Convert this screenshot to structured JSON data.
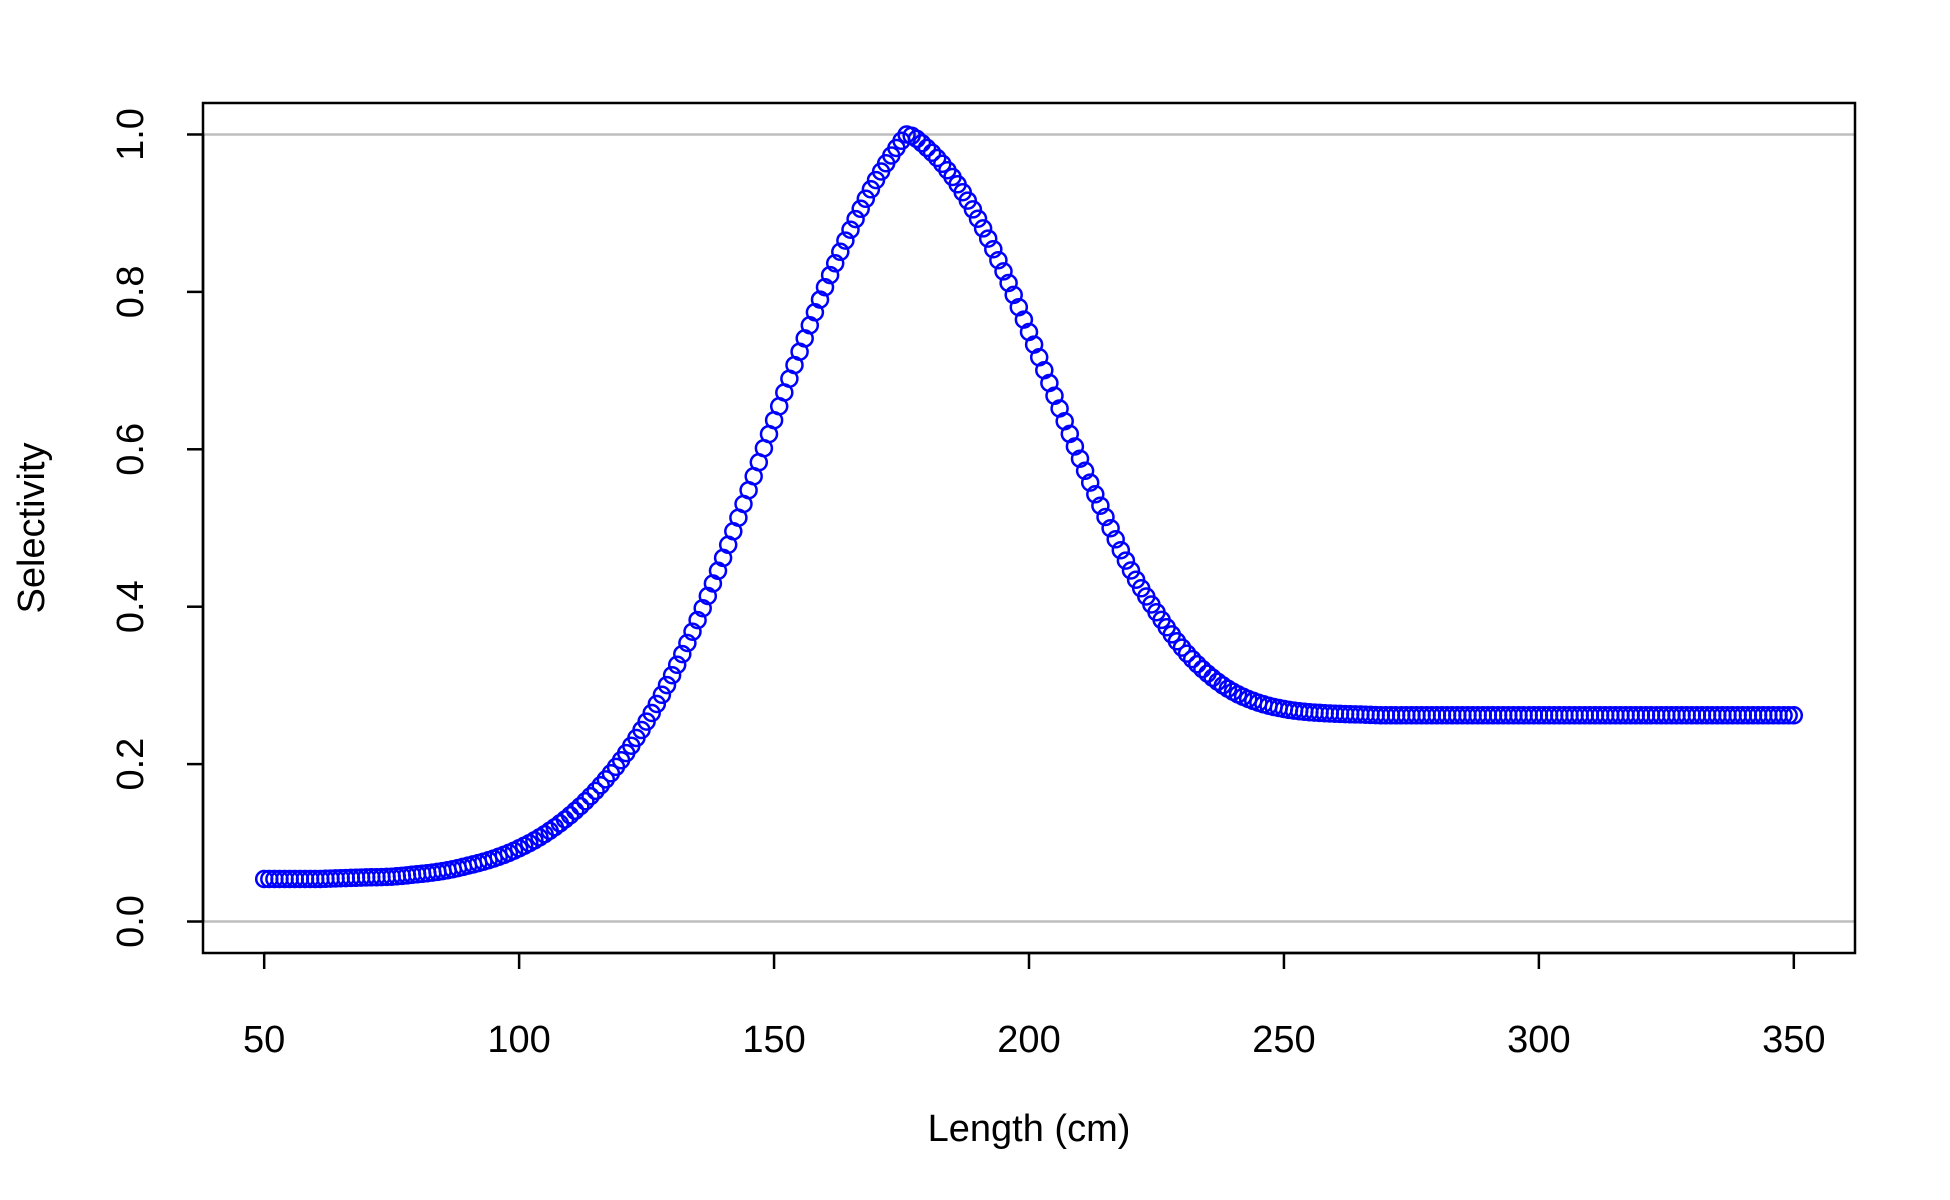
{
  "chart_data": {
    "type": "scatter",
    "title": "",
    "xlabel": "Length (cm)",
    "ylabel": "Selectivity",
    "xlim": [
      38,
      362
    ],
    "ylim": [
      -0.04,
      1.04
    ],
    "grid": false,
    "reference_lines": [
      0.0,
      1.0
    ],
    "x_ticks": [
      {
        "value": 50,
        "label": "50"
      },
      {
        "value": 100,
        "label": "100"
      },
      {
        "value": 150,
        "label": "150"
      },
      {
        "value": 200,
        "label": "200"
      },
      {
        "value": 250,
        "label": "250"
      },
      {
        "value": 300,
        "label": "300"
      },
      {
        "value": 350,
        "label": "350"
      }
    ],
    "y_ticks": [
      {
        "value": 0.0,
        "label": "0.0"
      },
      {
        "value": 0.2,
        "label": "0.2"
      },
      {
        "value": 0.4,
        "label": "0.4"
      },
      {
        "value": 0.6,
        "label": "0.6"
      },
      {
        "value": 0.8,
        "label": "0.8"
      },
      {
        "value": 1.0,
        "label": "1.0"
      }
    ],
    "series": [
      {
        "marker": "open-circle",
        "color": "#0000ff",
        "points": [
          [
            50,
            0.054
          ],
          [
            55,
            0.054
          ],
          [
            60,
            0.054
          ],
          [
            65,
            0.055
          ],
          [
            70,
            0.056
          ],
          [
            75,
            0.057
          ],
          [
            80,
            0.06
          ],
          [
            85,
            0.064
          ],
          [
            90,
            0.071
          ],
          [
            95,
            0.08
          ],
          [
            100,
            0.093
          ],
          [
            105,
            0.111
          ],
          [
            110,
            0.135
          ],
          [
            115,
            0.166
          ],
          [
            120,
            0.205
          ],
          [
            125,
            0.254
          ],
          [
            130,
            0.313
          ],
          [
            135,
            0.383
          ],
          [
            140,
            0.462
          ],
          [
            145,
            0.548
          ],
          [
            150,
            0.637
          ],
          [
            155,
            0.724
          ],
          [
            160,
            0.806
          ],
          [
            165,
            0.879
          ],
          [
            170,
            0.942
          ],
          [
            175,
            0.992
          ],
          [
            176,
            1.0
          ],
          [
            180,
            0.983
          ],
          [
            185,
            0.946
          ],
          [
            190,
            0.893
          ],
          [
            195,
            0.826
          ],
          [
            200,
            0.749
          ],
          [
            205,
            0.668
          ],
          [
            210,
            0.588
          ],
          [
            215,
            0.514
          ],
          [
            220,
            0.446
          ],
          [
            225,
            0.393
          ],
          [
            230,
            0.348
          ],
          [
            235,
            0.315
          ],
          [
            240,
            0.292
          ],
          [
            245,
            0.278
          ],
          [
            250,
            0.27
          ],
          [
            255,
            0.266
          ],
          [
            260,
            0.264
          ],
          [
            265,
            0.263
          ],
          [
            270,
            0.262
          ],
          [
            280,
            0.262
          ],
          [
            290,
            0.262
          ],
          [
            300,
            0.262
          ],
          [
            310,
            0.262
          ],
          [
            320,
            0.262
          ],
          [
            330,
            0.262
          ],
          [
            340,
            0.262
          ],
          [
            350,
            0.262
          ]
        ]
      }
    ]
  }
}
